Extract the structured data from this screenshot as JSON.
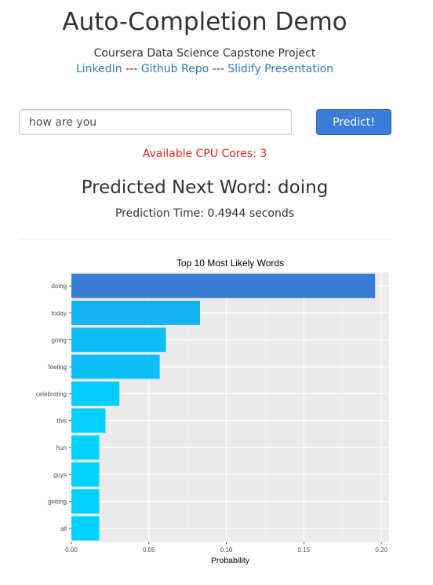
{
  "header": {
    "title": "Auto-Completion Demo",
    "subtitle": "Coursera Data Science Capstone Project",
    "links": [
      {
        "label": "LinkedIn"
      },
      {
        "label": "Github Repo"
      },
      {
        "label": "Slidify Presentation"
      }
    ],
    "separator": "---"
  },
  "search": {
    "value": "how are you",
    "button_label": "Predict!"
  },
  "status": {
    "cpu_cores": "Available CPU Cores: 3",
    "predicted": "Predicted Next Word: doing",
    "prediction_time": "Prediction Time: 0.4944 seconds"
  },
  "colors": {
    "link": "#337ab7",
    "cpu_text": "#e8261e",
    "button": "#3b7dd8",
    "bar_high": "#3a7bd5",
    "bar_low": "#00d2ff",
    "panel_bg": "#ebebeb"
  },
  "chart_data": {
    "type": "bar",
    "orientation": "horizontal",
    "title": "Top 10 Most Likely Words",
    "xlabel": "Probability",
    "ylabel": "",
    "categories": [
      "doing",
      "today",
      "going",
      "feeling",
      "celebrating",
      "this",
      "hun",
      "guys",
      "getting",
      "all"
    ],
    "values": [
      0.196,
      0.083,
      0.061,
      0.057,
      0.031,
      0.022,
      0.018,
      0.018,
      0.018,
      0.018
    ],
    "xlim": [
      0,
      0.205
    ],
    "xticks": [
      0,
      0.05,
      0.1,
      0.15,
      0.2
    ],
    "xtick_labels": [
      "0.00",
      "0.05",
      "0.10",
      "0.15",
      "0.20"
    ],
    "grid": true,
    "legend": "none"
  }
}
